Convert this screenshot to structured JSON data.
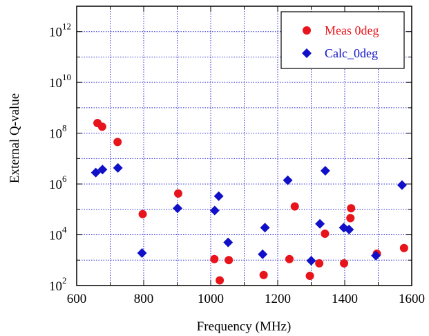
{
  "chart_data": {
    "type": "scatter",
    "xlabel": "Frequency (MHz)",
    "ylabel": "External Q-value",
    "xlim": [
      600,
      1600
    ],
    "ylog": true,
    "ylim_exponent": [
      2,
      13
    ],
    "x_ticks": [
      "600",
      "800",
      "1000",
      "1200",
      "1400",
      "1600"
    ],
    "y_ticks": [
      {
        "base": "10",
        "exp": "2",
        "exponent": 2
      },
      {
        "base": "10",
        "exp": "4",
        "exponent": 4
      },
      {
        "base": "10",
        "exp": "6",
        "exponent": 6
      },
      {
        "base": "10",
        "exp": "8",
        "exponent": 8
      },
      {
        "base": "10",
        "exp": "10",
        "exponent": 10
      },
      {
        "base": "10",
        "exp": "12",
        "exponent": 12
      }
    ],
    "grid": true,
    "legend_position": "top-right",
    "series": [
      {
        "name": "Meas 0deg",
        "marker": "circle",
        "color": "#e8141c",
        "points": [
          [
            662,
            250000000
          ],
          [
            676,
            180000000
          ],
          [
            722,
            45000000
          ],
          [
            797,
            65000
          ],
          [
            903,
            420000
          ],
          [
            1011,
            1100
          ],
          [
            1027,
            160
          ],
          [
            1054,
            1000
          ],
          [
            1158,
            260
          ],
          [
            1235,
            1100
          ],
          [
            1251,
            130000
          ],
          [
            1296,
            240
          ],
          [
            1324,
            750
          ],
          [
            1341,
            11000
          ],
          [
            1398,
            750
          ],
          [
            1417,
            45000
          ],
          [
            1419,
            110000
          ],
          [
            1496,
            1800
          ],
          [
            1577,
            3000
          ]
        ]
      },
      {
        "name": "Calc_0deg",
        "marker": "diamond",
        "color": "#1010c8",
        "points": [
          [
            657,
            2800000
          ],
          [
            677,
            3700000
          ],
          [
            723,
            4300000
          ],
          [
            795,
            1900
          ],
          [
            901,
            110000
          ],
          [
            1012,
            90000
          ],
          [
            1024,
            330000
          ],
          [
            1052,
            5000
          ],
          [
            1155,
            1700
          ],
          [
            1162,
            19000
          ],
          [
            1230,
            1400000
          ],
          [
            1300,
            950
          ],
          [
            1326,
            27000
          ],
          [
            1342,
            3300000
          ],
          [
            1397,
            19000
          ],
          [
            1413,
            16000
          ],
          [
            1493,
            1500
          ],
          [
            1571,
            900000
          ]
        ]
      }
    ]
  }
}
